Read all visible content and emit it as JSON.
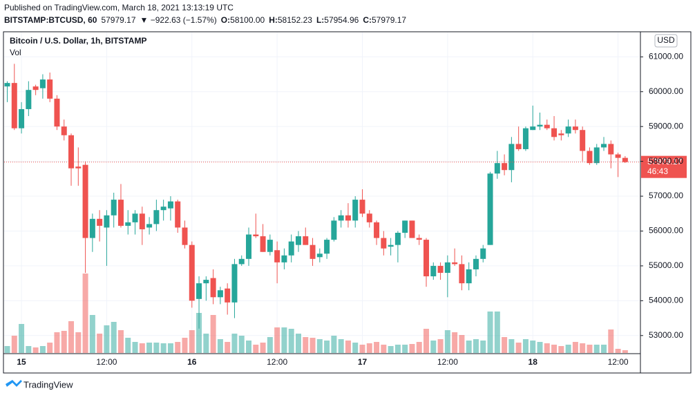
{
  "header": {
    "published": "Published on TradingView.com, March 18, 2021 13:13:19 UTC",
    "symbol": "BITSTAMP:BTCUSD, 60",
    "price": "57979.17",
    "change": "▼ −922.63 (−1.57%)",
    "ohlc": [
      {
        "key": "O:",
        "value": "58100.00"
      },
      {
        "key": "H:",
        "value": "58152.23"
      },
      {
        "key": "L:",
        "value": "57954.96"
      },
      {
        "key": "C:",
        "value": "57979.17"
      }
    ]
  },
  "chart_data": {
    "type": "candlestick",
    "title": "Bitcoin / U.S. Dollar, 1h, BITSTAMP",
    "volume_label": "Vol",
    "currency": "USD",
    "countdown": "46:43",
    "up_color": "#26a69a",
    "down_color": "#ef5350",
    "grid": true,
    "categories": [
      null,
      null,
      "15",
      null,
      null,
      null,
      null,
      null,
      null,
      null,
      null,
      null,
      null,
      null,
      "12:00",
      null,
      null,
      null,
      null,
      null,
      null,
      null,
      null,
      null,
      null,
      null,
      "16",
      null,
      null,
      null,
      null,
      null,
      null,
      null,
      null,
      null,
      null,
      null,
      "12:00",
      null,
      null,
      null,
      null,
      null,
      null,
      null,
      null,
      null,
      null,
      null,
      "17",
      null,
      null,
      null,
      null,
      null,
      null,
      null,
      null,
      null,
      null,
      null,
      "12:00",
      null,
      null,
      null,
      null,
      null,
      null,
      null,
      null,
      null,
      null,
      null,
      "18",
      null,
      null,
      null,
      null,
      null,
      null,
      null,
      null,
      null,
      null,
      null,
      "12:00",
      null
    ],
    "open": [
      60150,
      60250,
      58950,
      59500,
      60150,
      60100,
      60350,
      59800,
      59000,
      58750,
      57850,
      57900,
      55800,
      56350,
      56100,
      56450,
      56900,
      56150,
      56250,
      56500,
      56100,
      56200,
      56600,
      56650,
      56850,
      56100,
      55600,
      54050,
      54500,
      54650,
      54100,
      54350,
      53950,
      55050,
      55200,
      55900,
      55850,
      55400,
      55450,
      55100,
      55300,
      55600,
      55850,
      55600,
      55250,
      55350,
      55750,
      56300,
      56450,
      56300,
      56900,
      56500,
      56250,
      55800,
      55550,
      55600,
      55950,
      56300,
      55800,
      55750,
      54700,
      55000,
      54800,
      55100,
      55050,
      54500,
      54900,
      55200,
      55600,
      57650,
      57950,
      57750,
      58500,
      58350,
      58900,
      59000,
      59050,
      58950,
      58800,
      58800,
      59000,
      58900,
      58300,
      57950,
      58400,
      58500,
      58200,
      58100
    ],
    "high": [
      60300,
      60800,
      59700,
      60300,
      60200,
      60500,
      60550,
      59900,
      59200,
      58800,
      58400,
      58000,
      56500,
      56600,
      56600,
      57100,
      57350,
      56600,
      56600,
      56700,
      56400,
      56900,
      56900,
      57000,
      56900,
      56300,
      55700,
      54700,
      54700,
      54900,
      54400,
      54500,
      55200,
      55300,
      56100,
      56500,
      56200,
      55900,
      55700,
      55500,
      55900,
      56000,
      56100,
      55800,
      55500,
      55800,
      56400,
      56600,
      56800,
      57000,
      57200,
      56600,
      56300,
      56000,
      55800,
      56000,
      56300,
      56300,
      55900,
      55800,
      55100,
      55100,
      55300,
      55500,
      55300,
      55100,
      55300,
      55600,
      57700,
      58300,
      58200,
      58700,
      59000,
      59000,
      59600,
      59400,
      59200,
      59300,
      58900,
      59200,
      59200,
      59000,
      58400,
      58500,
      58700,
      58600,
      58250,
      58152.23
    ],
    "low": [
      59700,
      58900,
      58800,
      59300,
      59900,
      59800,
      59700,
      58900,
      58600,
      57300,
      57300,
      54800,
      55400,
      55700,
      55000,
      56100,
      56100,
      55900,
      55900,
      55600,
      55900,
      56000,
      56300,
      56300,
      55950,
      55500,
      53800,
      53200,
      54000,
      53900,
      53900,
      53600,
      53500,
      55000,
      55000,
      55800,
      55400,
      55300,
      54500,
      54900,
      55100,
      55400,
      55600,
      55000,
      55100,
      55200,
      55700,
      56100,
      56100,
      56100,
      56400,
      56100,
      55600,
      55300,
      55300,
      55100,
      55800,
      55800,
      55600,
      54400,
      54600,
      54600,
      54100,
      55000,
      54300,
      54300,
      54700,
      55100,
      55600,
      57500,
      57600,
      57400,
      58300,
      58300,
      58900,
      58900,
      58900,
      58600,
      58600,
      58700,
      58800,
      58000,
      57900,
      57900,
      58300,
      57800,
      57550,
      57954.96
    ],
    "close": [
      60250,
      58950,
      59500,
      60050,
      60050,
      60350,
      59800,
      59000,
      58750,
      57800,
      57800,
      55800,
      56350,
      56150,
      56450,
      56900,
      56150,
      56250,
      56500,
      56050,
      56200,
      56600,
      56700,
      56850,
      56100,
      55600,
      54000,
      54500,
      54600,
      54100,
      54300,
      53950,
      55050,
      55200,
      55900,
      55850,
      55400,
      55750,
      55100,
      55300,
      55700,
      55850,
      55600,
      55200,
      55350,
      55750,
      56300,
      56450,
      56300,
      56900,
      56500,
      56250,
      55800,
      55500,
      55600,
      55950,
      56300,
      55800,
      55750,
      54700,
      55000,
      54800,
      55100,
      55050,
      54500,
      54900,
      55200,
      55500,
      57650,
      57950,
      57750,
      58500,
      58350,
      58950,
      59000,
      59050,
      58950,
      58700,
      58750,
      59000,
      58900,
      58300,
      57950,
      58400,
      58500,
      58200,
      58100,
      57979.17
    ],
    "volume": [
      10,
      25,
      42,
      10,
      8,
      10,
      15,
      30,
      32,
      46,
      30,
      115,
      55,
      28,
      40,
      45,
      33,
      22,
      16,
      14,
      15,
      15,
      14,
      14,
      16,
      22,
      33,
      58,
      28,
      55,
      20,
      16,
      28,
      25,
      18,
      12,
      15,
      23,
      37,
      37,
      35,
      28,
      23,
      22,
      20,
      18,
      25,
      20,
      18,
      15,
      12,
      14,
      16,
      12,
      10,
      12,
      12,
      13,
      16,
      35,
      18,
      20,
      33,
      30,
      26,
      18,
      20,
      18,
      60,
      60,
      23,
      20,
      15,
      20,
      18,
      16,
      14,
      12,
      10,
      12,
      16,
      14,
      12,
      12,
      12,
      34,
      6,
      4
    ],
    "ylim": [
      52500,
      61700
    ],
    "yticks": [
      {
        "value": 53000,
        "label": "53000.00"
      },
      {
        "value": 54000,
        "label": "54000.00"
      },
      {
        "value": 55000,
        "label": "55000.00"
      },
      {
        "value": 56000,
        "label": "56000.00"
      },
      {
        "value": 57000,
        "label": "57000.00"
      },
      {
        "value": 58000,
        "label": "58000.00"
      },
      {
        "value": 59000,
        "label": "59000.00"
      },
      {
        "value": 60000,
        "label": "60000.00"
      },
      {
        "value": 61000,
        "label": "61000.00"
      }
    ]
  },
  "footer": {
    "brand": "TradingView"
  }
}
